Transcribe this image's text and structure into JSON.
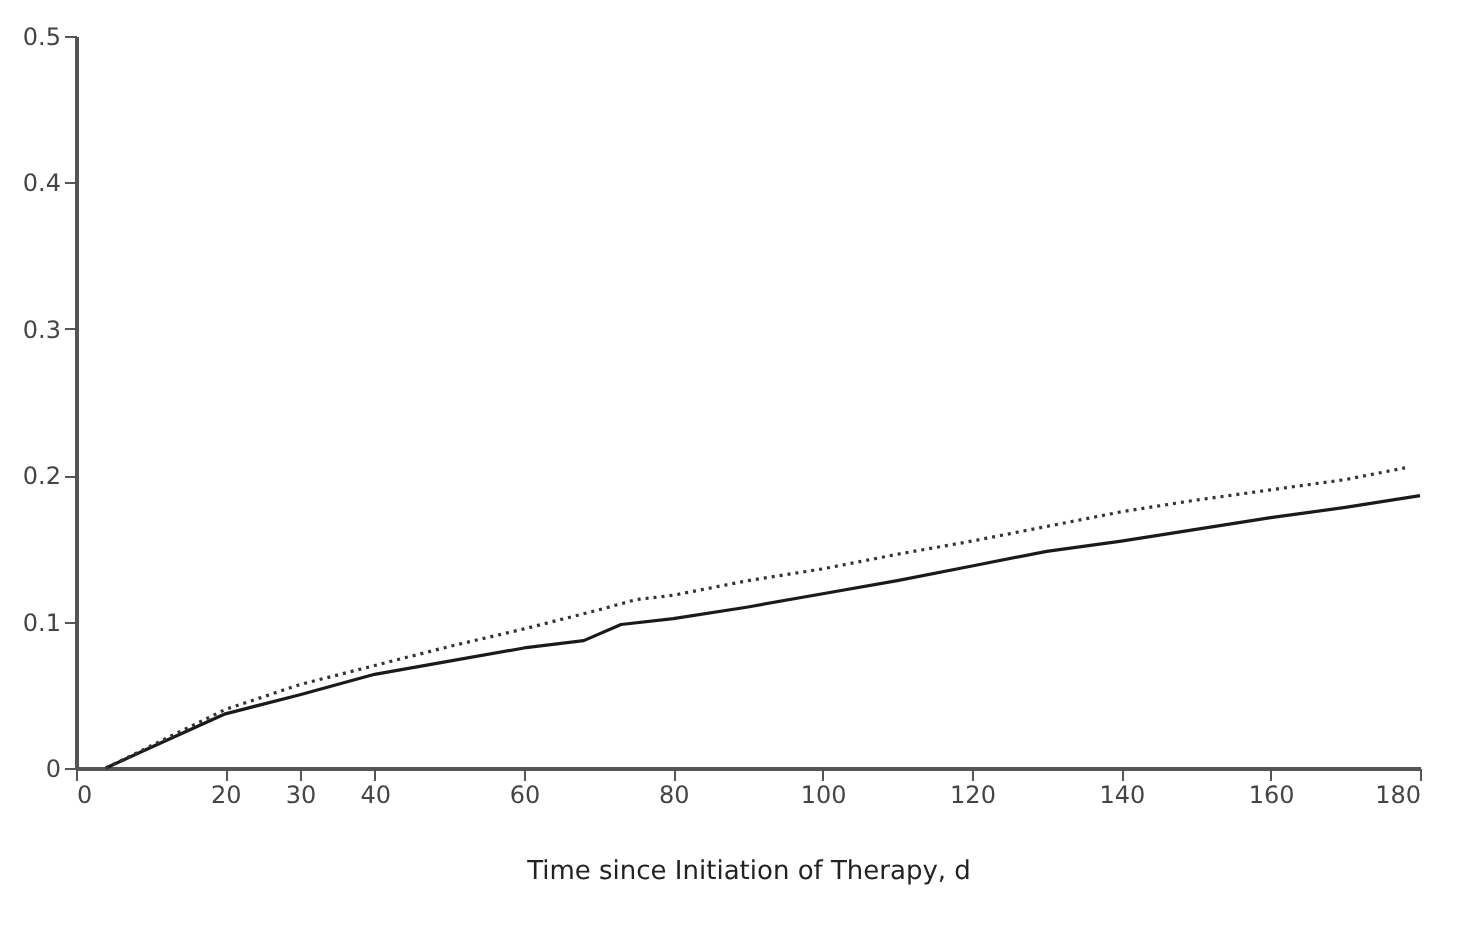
{
  "chart_data": {
    "type": "line",
    "xlabel": "Time since Initiation of Therapy, d",
    "xlim": [
      0,
      180
    ],
    "xticks": [
      0,
      20,
      30,
      40,
      60,
      80,
      100,
      120,
      140,
      160,
      180
    ],
    "ylim": [
      0,
      0.5
    ],
    "yticks": [
      0,
      0.1,
      0.2,
      0.3,
      0.4,
      0.5
    ],
    "grid": false,
    "marker": "none",
    "series": [
      {
        "color": "#1a1a1a",
        "line_style": "solid",
        "x": [
          4,
          10,
          20,
          30,
          40,
          50,
          60,
          68,
          73,
          80,
          90,
          100,
          110,
          120,
          130,
          140,
          150,
          160,
          170,
          180
        ],
        "values": [
          0,
          0.014,
          0.037,
          0.05,
          0.064,
          0.073,
          0.082,
          0.087,
          0.098,
          0.102,
          0.11,
          0.119,
          0.128,
          0.138,
          0.148,
          0.155,
          0.163,
          0.171,
          0.178,
          0.186
        ]
      },
      {
        "color": "#333333",
        "line_style": "dotted",
        "x": [
          4,
          10,
          20,
          30,
          40,
          50,
          60,
          70,
          75,
          80,
          90,
          100,
          110,
          120,
          130,
          140,
          150,
          160,
          170,
          178
        ],
        "values": [
          0,
          0.015,
          0.04,
          0.057,
          0.07,
          0.083,
          0.095,
          0.108,
          0.115,
          0.118,
          0.128,
          0.136,
          0.146,
          0.155,
          0.165,
          0.175,
          0.183,
          0.19,
          0.197,
          0.205
        ]
      }
    ]
  }
}
